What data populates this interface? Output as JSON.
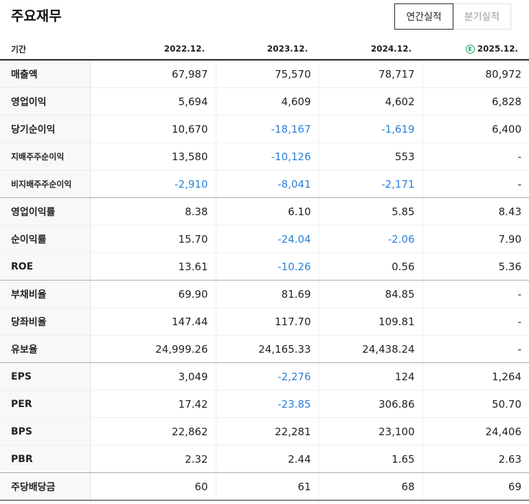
{
  "header": {
    "title": "주요재무",
    "tabs": [
      {
        "label": "연간실적",
        "active": true
      },
      {
        "label": "분기실적",
        "active": false
      }
    ]
  },
  "table": {
    "label_header": "기간",
    "estimate_icon": "E",
    "columns": [
      "2022.12.",
      "2023.12.",
      "2024.12.",
      "2025.12."
    ],
    "rows": [
      {
        "label": "매출액",
        "values": [
          "67,987",
          "75,570",
          "78,717",
          "80,972"
        ]
      },
      {
        "label": "영업이익",
        "values": [
          "5,694",
          "4,609",
          "4,602",
          "6,828"
        ]
      },
      {
        "label": "당기순이익",
        "values": [
          "10,670",
          "-18,167",
          "-1,619",
          "6,400"
        ]
      },
      {
        "label": "지배주주순이익",
        "values": [
          "13,580",
          "-10,126",
          "553",
          "-"
        ]
      },
      {
        "label": "비지배주주순이익",
        "values": [
          "-2,910",
          "-8,041",
          "-2,171",
          "-"
        ]
      },
      {
        "label": "영업이익률",
        "values": [
          "8.38",
          "6.10",
          "5.85",
          "8.43"
        ]
      },
      {
        "label": "순이익률",
        "values": [
          "15.70",
          "-24.04",
          "-2.06",
          "7.90"
        ]
      },
      {
        "label": "ROE",
        "values": [
          "13.61",
          "-10.26",
          "0.56",
          "5.36"
        ]
      },
      {
        "label": "부채비율",
        "values": [
          "69.90",
          "81.69",
          "84.85",
          "-"
        ]
      },
      {
        "label": "당좌비율",
        "values": [
          "147.44",
          "117.70",
          "109.81",
          "-"
        ]
      },
      {
        "label": "유보율",
        "values": [
          "24,999.26",
          "24,165.33",
          "24,438.24",
          "-"
        ]
      },
      {
        "label": "EPS",
        "values": [
          "3,049",
          "-2,276",
          "124",
          "1,264"
        ]
      },
      {
        "label": "PER",
        "values": [
          "17.42",
          "-23.85",
          "306.86",
          "50.70"
        ]
      },
      {
        "label": "BPS",
        "values": [
          "22,862",
          "22,281",
          "23,100",
          "24,406"
        ]
      },
      {
        "label": "PBR",
        "values": [
          "2.32",
          "2.44",
          "1.65",
          "2.63"
        ]
      },
      {
        "label": "주당배당금",
        "values": [
          "60",
          "61",
          "68",
          "69"
        ]
      }
    ]
  },
  "colors": {
    "negative": "#2b7fd9",
    "estimate": "#00a35a"
  }
}
